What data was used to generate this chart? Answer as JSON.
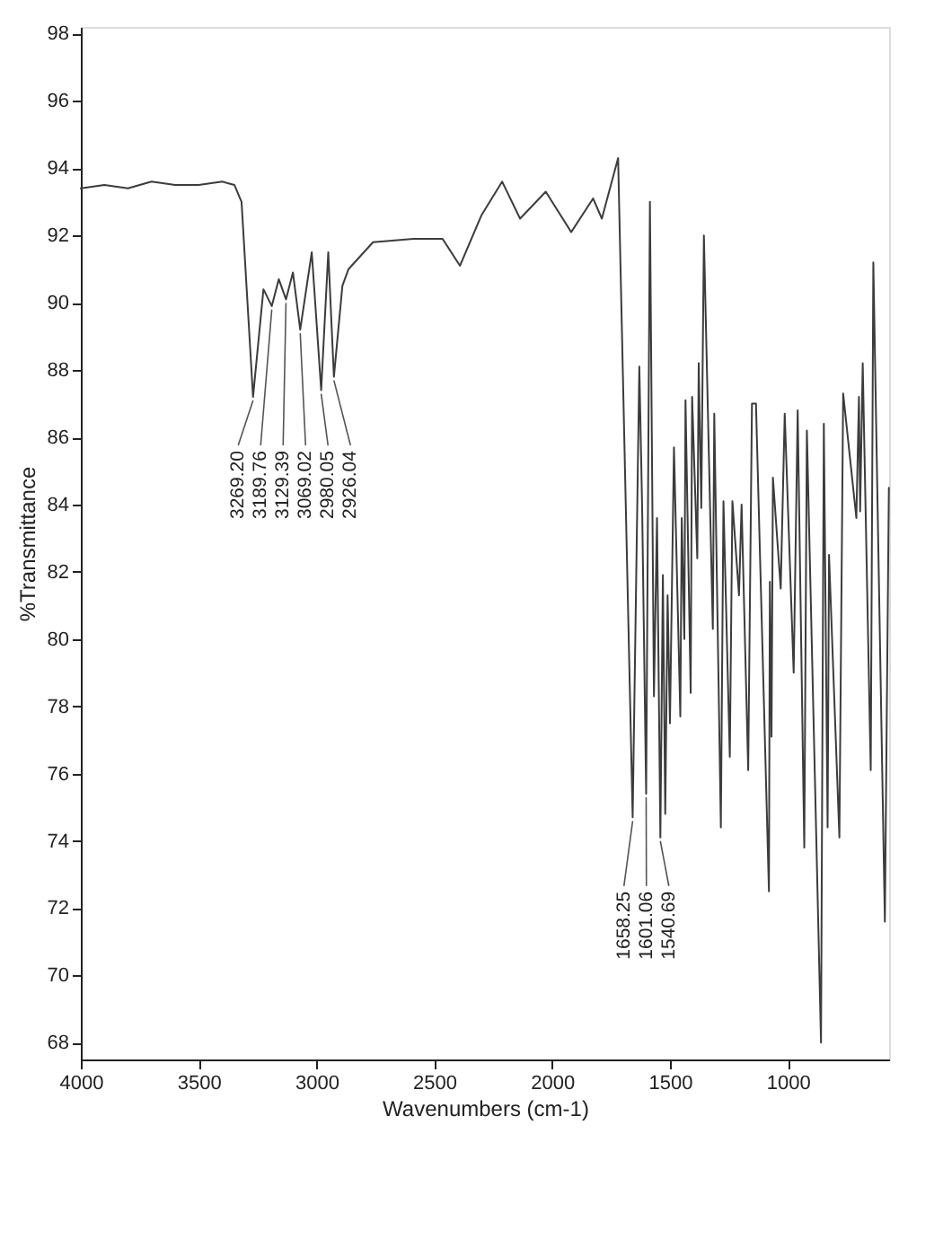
{
  "chart_data": {
    "type": "line",
    "xlabel": "Wavenumbers (cm-1)",
    "ylabel": "%Transmittance",
    "x": [
      4000,
      3900,
      3800,
      3700,
      3600,
      3500,
      3400,
      3348,
      3318,
      3269.2,
      3225,
      3189.76,
      3160,
      3129.39,
      3100,
      3069.02,
      3020,
      2980.05,
      2950,
      2926.04,
      2890,
      2864,
      2812,
      2760,
      2588,
      2465,
      2391,
      2300,
      2212,
      2136,
      2027,
      1919,
      1826,
      1789,
      1720,
      1658.25,
      1630,
      1618,
      1601.06,
      1585,
      1568,
      1555,
      1540.69,
      1530,
      1520,
      1510,
      1500,
      1483,
      1456,
      1450,
      1439,
      1434,
      1412,
      1406,
      1384,
      1378,
      1367,
      1356,
      1318,
      1312,
      1284,
      1273,
      1246,
      1235,
      1207,
      1196,
      1168,
      1152,
      1135,
      1080,
      1076,
      1069,
      1063,
      1030,
      1013,
      975,
      958,
      930,
      919,
      859,
      847,
      831,
      825,
      781,
      765,
      709,
      698,
      693,
      682,
      648,
      637,
      588,
      571
    ],
    "series": [
      {
        "color": "#3c3c3c",
        "values": [
          93.4,
          93.5,
          93.4,
          93.6,
          93.5,
          93.5,
          93.6,
          93.5,
          93.0,
          87.2,
          90.4,
          89.9,
          90.7,
          90.1,
          90.9,
          89.2,
          91.5,
          87.4,
          91.5,
          87.8,
          90.5,
          91.0,
          91.4,
          91.8,
          91.9,
          91.9,
          91.1,
          92.6,
          93.6,
          92.5,
          93.3,
          92.1,
          93.1,
          92.5,
          94.3,
          74.7,
          88.1,
          83.9,
          75.4,
          93.0,
          78.3,
          83.6,
          74.1,
          81.9,
          74.8,
          81.3,
          77.5,
          85.7,
          77.7,
          83.6,
          80.0,
          87.1,
          78.4,
          87.2,
          82.4,
          88.2,
          83.9,
          92.0,
          80.3,
          86.7,
          74.4,
          84.1,
          76.5,
          84.1,
          81.3,
          84.0,
          76.1,
          87.0,
          87.0,
          72.5,
          81.7,
          77.1,
          84.8,
          81.5,
          86.7,
          79.0,
          86.8,
          73.8,
          86.2,
          68.0,
          86.4,
          74.4,
          82.5,
          74.1,
          87.3,
          83.6,
          87.2,
          83.8,
          88.2,
          76.1,
          91.2,
          71.6,
          84.5
        ]
      }
    ],
    "xlim": [
      4000,
      570
    ],
    "ylim": [
      67.5,
      98.2
    ],
    "xticks": [
      4000,
      3500,
      3000,
      2500,
      2000,
      1500,
      1000
    ],
    "yticks": [
      68,
      70,
      72,
      74,
      76,
      78,
      80,
      82,
      84,
      86,
      88,
      90,
      92,
      94,
      96,
      98
    ],
    "annotations": [
      {
        "text": "3269.20",
        "x": 3269.2,
        "y": 87.2
      },
      {
        "text": "3189.76",
        "x": 3189.76,
        "y": 89.9
      },
      {
        "text": "3129.39",
        "x": 3129.39,
        "y": 90.1
      },
      {
        "text": "3069.02",
        "x": 3069.02,
        "y": 89.2
      },
      {
        "text": "2980.05",
        "x": 2980.05,
        "y": 87.4
      },
      {
        "text": "2926.04",
        "x": 2926.04,
        "y": 87.8
      },
      {
        "text": "1658.25",
        "x": 1658.25,
        "y": 74.7
      },
      {
        "text": "1601.06",
        "x": 1601.06,
        "y": 75.4
      },
      {
        "text": "1540.69",
        "x": 1540.69,
        "y": 74.1
      }
    ]
  }
}
